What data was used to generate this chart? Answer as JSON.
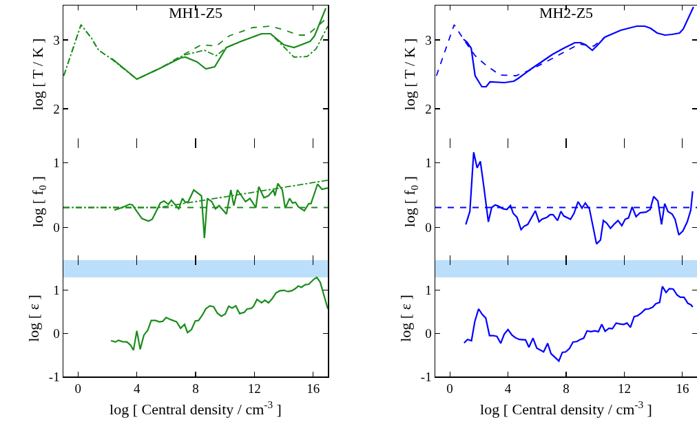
{
  "chart_data": [
    {
      "type": "line",
      "title": "MH1-Z5",
      "ylabel": "log [ T / K ]",
      "xlim": [
        -1,
        17
      ],
      "xticks": [
        0,
        4,
        8,
        12,
        16
      ],
      "ylim": [
        1.5,
        3.5
      ],
      "yticks": [
        2,
        3
      ],
      "tick_labels": "y",
      "series": [
        {
          "color": "#1a8c1a",
          "line_style": "dashed",
          "x": [
            -0.97,
            0.2,
            0.9,
            1.4,
            2.3,
            4.0,
            5.6,
            7.2,
            8.4,
            9.4,
            10.3,
            11.9,
            13.1,
            14.1,
            15.0,
            15.6,
            16.2,
            17.0
          ],
          "values": [
            2.48,
            3.22,
            3.03,
            2.85,
            2.72,
            2.43,
            2.59,
            2.79,
            2.93,
            2.91,
            3.06,
            3.18,
            3.2,
            3.14,
            3.07,
            3.07,
            3.18,
            3.33
          ]
        },
        {
          "color": "#1a8c1a",
          "line_style": "dashdot",
          "x": [
            -0.97,
            0.2,
            0.9,
            1.4,
            2.3,
            4.0,
            5.6,
            7.2,
            8.6,
            9.4,
            10.1,
            11.1,
            12.5,
            13.1,
            14.0,
            14.7,
            15.6,
            16.2,
            17.0
          ],
          "values": [
            2.48,
            3.22,
            3.03,
            2.85,
            2.72,
            2.43,
            2.59,
            2.78,
            2.85,
            2.77,
            2.89,
            2.98,
            3.09,
            3.09,
            2.9,
            2.75,
            2.76,
            2.87,
            3.2
          ]
        },
        {
          "color": "#1a8c1a",
          "line_style": "solid",
          "x": [
            2.3,
            4.0,
            5.6,
            7.0,
            7.3,
            8.1,
            8.7,
            9.3,
            10.1,
            11.1,
            12.5,
            13.1,
            14.0,
            14.7,
            15.8,
            16.1,
            16.86
          ],
          "values": [
            2.73,
            2.43,
            2.59,
            2.74,
            2.75,
            2.68,
            2.58,
            2.61,
            2.89,
            2.98,
            3.09,
            3.09,
            2.93,
            2.89,
            2.98,
            3.06,
            3.46
          ]
        }
      ]
    },
    {
      "type": "line",
      "title": "MH2-Z5",
      "ylabel": "log [ T / K ]",
      "xlim": [
        -1,
        17
      ],
      "xticks": [
        0,
        4,
        8,
        12,
        16
      ],
      "ylim": [
        1.5,
        3.5
      ],
      "yticks": [
        2,
        3
      ],
      "tick_labels": "y",
      "series": [
        {
          "color": "#0000ff",
          "line_style": "dashed",
          "x": [
            -0.92,
            0.3,
            0.94,
            1.74,
            2.5,
            3.46,
            4.55,
            5.5,
            7.05,
            8.9,
            9.9,
            10.66
          ],
          "values": [
            2.48,
            3.22,
            3.01,
            2.77,
            2.63,
            2.49,
            2.48,
            2.56,
            2.73,
            2.94,
            2.91,
            3.04
          ]
        },
        {
          "color": "#0000ff",
          "line_style": "solid",
          "x": [
            0.94,
            1.17,
            1.47,
            1.74,
            2.2,
            2.5,
            2.76,
            3.76,
            4.4,
            4.7,
            5.6,
            6.3,
            7.06,
            7.84,
            8.6,
            9.0,
            9.33,
            9.8,
            10.1,
            10.66,
            11.75,
            12.85,
            13.4,
            13.8,
            14.26,
            14.8,
            15.27,
            15.8,
            16.06,
            16.76
          ],
          "values": [
            3.01,
            2.97,
            2.88,
            2.48,
            2.32,
            2.32,
            2.39,
            2.38,
            2.4,
            2.44,
            2.58,
            2.68,
            2.79,
            2.88,
            2.96,
            2.96,
            2.93,
            2.85,
            2.91,
            3.04,
            3.14,
            3.2,
            3.2,
            3.17,
            3.1,
            3.07,
            3.08,
            3.1,
            3.16,
            3.48
          ]
        }
      ]
    },
    {
      "type": "line",
      "ylabel": "log [ f$_{0}$ ]",
      "xlim": [
        -1,
        17
      ],
      "xticks": [
        0,
        4,
        8,
        12,
        16
      ],
      "ylim": [
        -0.5,
        1.3
      ],
      "yticks": [
        0,
        1
      ],
      "tick_labels": "y",
      "ref_lines": [
        {
          "axis": "y",
          "value": 0.31,
          "color": "#1a8c1a",
          "line_style": "dashed"
        }
      ],
      "series": [
        {
          "color": "#1a8c1a",
          "line_style": "dashdot",
          "x": [
            -1,
            5.5,
            17
          ],
          "values": [
            0.31,
            0.31,
            0.73
          ]
        },
        {
          "color": "#1a8c1a",
          "line_style": "solid",
          "x": [
            2.47,
            3.0,
            3.5,
            3.7,
            4.0,
            4.35,
            4.8,
            5.05,
            5.6,
            5.85,
            6.15,
            6.35,
            6.85,
            7.1,
            7.3,
            7.5,
            7.875,
            8.4,
            8.6,
            8.8,
            9.1,
            9.35,
            9.6,
            9.75,
            10.1,
            10.4,
            10.6,
            10.85,
            11.4,
            11.7,
            12.1,
            12.3,
            12.65,
            12.95,
            13.3,
            13.4,
            13.6,
            13.9,
            14.1,
            14.4,
            14.6,
            14.8,
            14.99,
            15.4,
            15.7,
            15.85,
            16.3,
            16.6,
            17.0
          ],
          "values": [
            0.27,
            0.31,
            0.36,
            0.35,
            0.25,
            0.14,
            0.1,
            0.13,
            0.38,
            0.41,
            0.36,
            0.42,
            0.29,
            0.45,
            0.39,
            0.4,
            0.58,
            0.49,
            -0.16,
            0.45,
            0.4,
            0.29,
            0.34,
            0.3,
            0.21,
            0.58,
            0.34,
            0.58,
            0.4,
            0.45,
            0.31,
            0.63,
            0.46,
            0.49,
            0.58,
            0.49,
            0.68,
            0.58,
            0.3,
            0.45,
            0.38,
            0.39,
            0.32,
            0.26,
            0.37,
            0.37,
            0.67,
            0.59,
            0.61
          ]
        }
      ]
    },
    {
      "type": "line",
      "ylabel": "log [ f$_{0}$ ]",
      "xlim": [
        -1,
        17
      ],
      "xticks": [
        0,
        4,
        8,
        12,
        16
      ],
      "ylim": [
        -0.5,
        1.3
      ],
      "yticks": [
        0,
        1
      ],
      "tick_labels": "y",
      "ref_lines": [
        {
          "axis": "y",
          "value": 0.31,
          "color": "#0000ff",
          "line_style": "dashed"
        }
      ],
      "series": [
        {
          "color": "#0000ff",
          "line_style": "solid",
          "x": [
            1.1,
            1.38,
            1.64,
            1.88,
            2.1,
            2.34,
            2.65,
            2.88,
            3.12,
            3.35,
            3.66,
            3.92,
            4.17,
            4.36,
            4.62,
            4.9,
            5.1,
            5.36,
            5.88,
            6.14,
            6.34,
            6.68,
            6.9,
            7.1,
            7.41,
            7.64,
            7.84,
            8.3,
            8.54,
            8.82,
            9.09,
            9.32,
            9.6,
            10.09,
            10.36,
            10.56,
            10.79,
            11.05,
            11.33,
            11.57,
            11.83,
            12.06,
            12.29,
            12.54,
            12.81,
            13.09,
            13.5,
            13.78,
            14.02,
            14.31,
            14.56,
            14.78,
            15.0,
            15.29,
            15.49,
            15.75,
            16.03,
            16.33,
            16.57,
            16.7
          ],
          "values": [
            0.05,
            0.25,
            1.16,
            0.92,
            1.02,
            0.63,
            0.09,
            0.31,
            0.35,
            0.33,
            0.29,
            0.28,
            0.34,
            0.22,
            0.16,
            -0.03,
            0.02,
            0.05,
            0.26,
            0.09,
            0.13,
            0.16,
            0.2,
            0.2,
            0.11,
            0.25,
            0.18,
            0.13,
            0.22,
            0.4,
            0.3,
            0.38,
            0.29,
            -0.25,
            -0.19,
            0.11,
            0.07,
            -0.01,
            0.06,
            0.11,
            0.03,
            0.13,
            0.15,
            0.32,
            0.17,
            0.23,
            0.24,
            0.28,
            0.48,
            0.41,
            0.05,
            0.37,
            0.25,
            0.21,
            0.13,
            -0.11,
            -0.05,
            0.09,
            0.27,
            0.56
          ]
        }
      ]
    },
    {
      "type": "line",
      "ylabel": "log [ ε ]",
      "xlabel": "log [ Central density / cm$^{-3}$ ]",
      "xlim": [
        -1,
        17
      ],
      "xticks": [
        0,
        4,
        8,
        12,
        16
      ],
      "ylim": [
        -1,
        1.7
      ],
      "yticks": [
        -1,
        0,
        1
      ],
      "bands": [
        {
          "axis": "y",
          "from": 1.3,
          "to": 1.7,
          "color": "#bbdefb"
        }
      ],
      "series": [
        {
          "color": "#1a8c1a",
          "line_style": "solid",
          "x": [
            2.24,
            2.55,
            2.75,
            3.02,
            3.33,
            3.57,
            3.77,
            4.0,
            4.23,
            4.48,
            4.74,
            4.98,
            5.29,
            5.52,
            5.76,
            5.99,
            6.31,
            6.7,
            6.98,
            7.25,
            7.45,
            7.72,
            7.98,
            8.2,
            8.47,
            8.69,
            8.97,
            9.23,
            9.48,
            9.75,
            10.02,
            10.25,
            10.49,
            10.74,
            11.0,
            11.31,
            11.52,
            11.78,
            11.94,
            12.18,
            12.49,
            12.72,
            12.96,
            13.2,
            13.47,
            13.74,
            14.02,
            14.29,
            14.55,
            14.79,
            14.99,
            15.2,
            15.46,
            15.7,
            16.06,
            16.25,
            16.48,
            17.0
          ],
          "values": [
            -0.17,
            -0.2,
            -0.16,
            -0.19,
            -0.2,
            -0.27,
            -0.39,
            0.06,
            -0.37,
            -0.04,
            0.07,
            0.3,
            0.3,
            0.27,
            0.28,
            0.37,
            0.32,
            0.27,
            0.12,
            0.21,
            0.02,
            0.09,
            0.29,
            0.3,
            0.43,
            0.57,
            0.64,
            0.62,
            0.47,
            0.4,
            0.45,
            0.63,
            0.59,
            0.64,
            0.46,
            0.49,
            0.57,
            0.58,
            0.63,
            0.79,
            0.71,
            0.77,
            0.71,
            0.8,
            0.94,
            0.99,
            1.0,
            0.97,
            0.99,
            1.04,
            1.1,
            1.07,
            1.13,
            1.14,
            1.26,
            1.3,
            1.19,
            0.57
          ]
        }
      ]
    },
    {
      "type": "line",
      "ylabel": "log [ ε ]",
      "xlabel": "log [ Central density / cm$^{-3}$ ]",
      "xlim": [
        -1,
        17
      ],
      "xticks": [
        0,
        4,
        8,
        12,
        16
      ],
      "ylim": [
        -1,
        1.7
      ],
      "yticks": [
        -1,
        0,
        1
      ],
      "bands": [
        {
          "axis": "y",
          "from": 1.3,
          "to": 1.7,
          "color": "#bbdefb"
        }
      ],
      "series": [
        {
          "color": "#0000ff",
          "line_style": "solid",
          "x": [
            0.98,
            1.22,
            1.49,
            1.72,
            1.98,
            2.23,
            2.47,
            2.73,
            2.96,
            3.24,
            3.5,
            3.74,
            4.0,
            4.28,
            4.51,
            4.78,
            5.21,
            5.44,
            5.72,
            5.98,
            6.45,
            6.73,
            6.96,
            7.22,
            7.5,
            7.74,
            7.97,
            8.23,
            8.47,
            8.73,
            8.98,
            9.21,
            9.44,
            9.71,
            9.97,
            10.22,
            10.45,
            10.68,
            10.95,
            11.18,
            11.44,
            11.69,
            11.95,
            12.19,
            12.42,
            12.68,
            12.91,
            13.16,
            13.43,
            13.69,
            13.95,
            14.17,
            14.43,
            14.62,
            14.87,
            15.1,
            15.36,
            15.63,
            15.86,
            16.11,
            16.37,
            16.6,
            16.7
          ],
          "values": [
            -0.22,
            -0.14,
            -0.17,
            0.28,
            0.57,
            0.44,
            0.36,
            -0.05,
            -0.05,
            -0.07,
            -0.23,
            -0.02,
            0.09,
            -0.04,
            -0.1,
            -0.14,
            -0.15,
            -0.32,
            -0.11,
            -0.34,
            -0.43,
            -0.23,
            -0.47,
            -0.55,
            -0.64,
            -0.44,
            -0.43,
            -0.35,
            -0.2,
            -0.19,
            -0.14,
            -0.11,
            0.06,
            0.04,
            0.06,
            0.04,
            0.21,
            0.05,
            0.12,
            0.11,
            0.24,
            0.22,
            0.21,
            0.24,
            0.14,
            0.39,
            0.41,
            0.47,
            0.56,
            0.57,
            0.61,
            0.69,
            0.72,
            1.09,
            0.95,
            1.04,
            1.03,
            0.89,
            0.84,
            0.84,
            0.7,
            0.66,
            0.61
          ]
        }
      ]
    }
  ]
}
